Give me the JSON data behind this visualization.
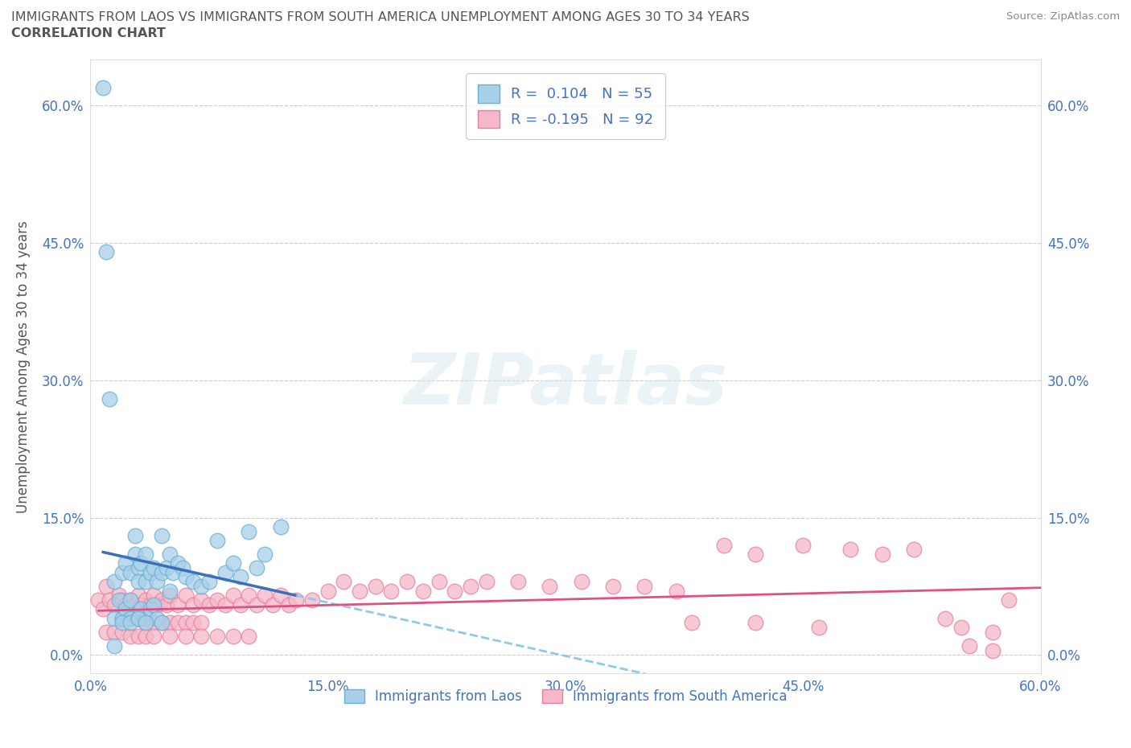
{
  "title_line1": "IMMIGRANTS FROM LAOS VS IMMIGRANTS FROM SOUTH AMERICA UNEMPLOYMENT AMONG AGES 30 TO 34 YEARS",
  "title_line2": "CORRELATION CHART",
  "source_text": "Source: ZipAtlas.com",
  "ylabel": "Unemployment Among Ages 30 to 34 years",
  "xlim": [
    0.0,
    0.6
  ],
  "ylim": [
    -0.02,
    0.65
  ],
  "xticks": [
    0.0,
    0.15,
    0.3,
    0.45,
    0.6
  ],
  "yticks": [
    0.0,
    0.15,
    0.3,
    0.45,
    0.6
  ],
  "xticklabels": [
    "0.0%",
    "15.0%",
    "30.0%",
    "45.0%",
    "60.0%"
  ],
  "yticklabels": [
    "0.0%",
    "15.0%",
    "30.0%",
    "45.0%",
    "60.0%"
  ],
  "color_laos": "#a8d0e8",
  "color_sa": "#f5b8c8",
  "edge_color_laos": "#6aaed6",
  "edge_color_sa": "#e87fa0",
  "line_color_laos": "#3a6fba",
  "line_color_sa": "#e05080",
  "dashed_line_color": "#90c8e8",
  "R_laos": 0.104,
  "N_laos": 55,
  "R_sa": -0.195,
  "N_sa": 92,
  "legend_label_laos": "Immigrants from Laos",
  "legend_label_sa": "Immigrants from South America",
  "watermark": "ZIPatlas",
  "background_color": "#ffffff",
  "grid_color": "#cccccc",
  "title_color": "#555555",
  "tick_color": "#4472C4",
  "ylabel_color": "#555555",
  "laos_x": [
    0.008,
    0.01,
    0.012,
    0.015,
    0.015,
    0.018,
    0.02,
    0.02,
    0.022,
    0.022,
    0.025,
    0.025,
    0.025,
    0.028,
    0.028,
    0.03,
    0.03,
    0.03,
    0.032,
    0.032,
    0.035,
    0.035,
    0.035,
    0.038,
    0.038,
    0.04,
    0.04,
    0.042,
    0.042,
    0.045,
    0.045,
    0.048,
    0.05,
    0.05,
    0.052,
    0.055,
    0.058,
    0.06,
    0.065,
    0.07,
    0.075,
    0.08,
    0.085,
    0.09,
    0.095,
    0.1,
    0.105,
    0.11,
    0.12,
    0.02,
    0.025,
    0.03,
    0.035,
    0.045,
    0.015
  ],
  "laos_y": [
    0.62,
    0.44,
    0.28,
    0.08,
    0.04,
    0.06,
    0.09,
    0.04,
    0.1,
    0.05,
    0.09,
    0.06,
    0.04,
    0.13,
    0.11,
    0.095,
    0.08,
    0.04,
    0.1,
    0.05,
    0.11,
    0.08,
    0.04,
    0.09,
    0.05,
    0.095,
    0.055,
    0.08,
    0.04,
    0.13,
    0.09,
    0.095,
    0.11,
    0.07,
    0.09,
    0.1,
    0.095,
    0.085,
    0.08,
    0.075,
    0.08,
    0.125,
    0.09,
    0.1,
    0.085,
    0.135,
    0.095,
    0.11,
    0.14,
    0.035,
    0.035,
    0.04,
    0.035,
    0.035,
    0.01
  ],
  "sa_x": [
    0.005,
    0.008,
    0.01,
    0.012,
    0.015,
    0.018,
    0.02,
    0.02,
    0.022,
    0.025,
    0.025,
    0.028,
    0.03,
    0.03,
    0.032,
    0.035,
    0.035,
    0.038,
    0.04,
    0.04,
    0.042,
    0.045,
    0.045,
    0.048,
    0.05,
    0.05,
    0.055,
    0.055,
    0.06,
    0.06,
    0.065,
    0.065,
    0.07,
    0.07,
    0.075,
    0.08,
    0.085,
    0.09,
    0.095,
    0.1,
    0.105,
    0.11,
    0.115,
    0.12,
    0.125,
    0.13,
    0.14,
    0.15,
    0.16,
    0.17,
    0.18,
    0.19,
    0.2,
    0.21,
    0.22,
    0.23,
    0.24,
    0.25,
    0.27,
    0.29,
    0.31,
    0.33,
    0.35,
    0.37,
    0.4,
    0.42,
    0.45,
    0.48,
    0.5,
    0.52,
    0.55,
    0.57,
    0.58,
    0.01,
    0.015,
    0.02,
    0.025,
    0.03,
    0.035,
    0.04,
    0.05,
    0.06,
    0.07,
    0.08,
    0.09,
    0.1,
    0.38,
    0.42,
    0.46,
    0.54,
    0.555,
    0.57
  ],
  "sa_y": [
    0.06,
    0.05,
    0.075,
    0.06,
    0.055,
    0.065,
    0.06,
    0.04,
    0.055,
    0.06,
    0.04,
    0.055,
    0.065,
    0.04,
    0.055,
    0.06,
    0.035,
    0.055,
    0.065,
    0.035,
    0.055,
    0.06,
    0.035,
    0.055,
    0.065,
    0.035,
    0.055,
    0.035,
    0.065,
    0.035,
    0.055,
    0.035,
    0.06,
    0.035,
    0.055,
    0.06,
    0.055,
    0.065,
    0.055,
    0.065,
    0.055,
    0.065,
    0.055,
    0.065,
    0.055,
    0.06,
    0.06,
    0.07,
    0.08,
    0.07,
    0.075,
    0.07,
    0.08,
    0.07,
    0.08,
    0.07,
    0.075,
    0.08,
    0.08,
    0.075,
    0.08,
    0.075,
    0.075,
    0.07,
    0.12,
    0.11,
    0.12,
    0.115,
    0.11,
    0.115,
    0.03,
    0.025,
    0.06,
    0.025,
    0.025,
    0.025,
    0.02,
    0.02,
    0.02,
    0.02,
    0.02,
    0.02,
    0.02,
    0.02,
    0.02,
    0.02,
    0.035,
    0.035,
    0.03,
    0.04,
    0.01,
    0.005
  ]
}
